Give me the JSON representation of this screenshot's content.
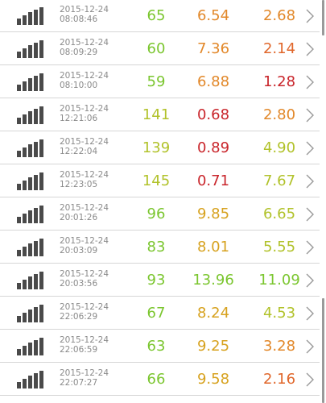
{
  "colors": {
    "green": "#7bc62f",
    "yellowgreen": "#b1c22a",
    "amber": "#d7a21f",
    "orange": "#e2882a",
    "red": "#c9252b"
  },
  "icons": {
    "signal": "signal-strength-icon",
    "chevron": "chevron-right-icon"
  },
  "rows": [
    {
      "date": "2015-12-24",
      "time": "08:08:46",
      "ping": "65",
      "download": "6.54",
      "upload": "2.68",
      "ping_color": "#7bc62f",
      "download_color": "#e2882a",
      "upload_color": "#e2882a"
    },
    {
      "date": "2015-12-24",
      "time": "08:09:29",
      "ping": "60",
      "download": "7.36",
      "upload": "2.14",
      "ping_color": "#7bc62f",
      "download_color": "#e2882a",
      "upload_color": "#e0662a"
    },
    {
      "date": "2015-12-24",
      "time": "08:10:00",
      "ping": "59",
      "download": "6.88",
      "upload": "1.28",
      "ping_color": "#7bc62f",
      "download_color": "#e2882a",
      "upload_color": "#c9252b"
    },
    {
      "date": "2015-12-24",
      "time": "12:21:06",
      "ping": "141",
      "download": "0.68",
      "upload": "2.80",
      "ping_color": "#b1c22a",
      "download_color": "#c9252b",
      "upload_color": "#e2882a"
    },
    {
      "date": "2015-12-24",
      "time": "12:22:04",
      "ping": "139",
      "download": "0.89",
      "upload": "4.90",
      "ping_color": "#b1c22a",
      "download_color": "#c9252b",
      "upload_color": "#b1c22a"
    },
    {
      "date": "2015-12-24",
      "time": "12:23:05",
      "ping": "145",
      "download": "0.71",
      "upload": "7.67",
      "ping_color": "#b1c22a",
      "download_color": "#c9252b",
      "upload_color": "#b1c22a"
    },
    {
      "date": "2015-12-24",
      "time": "20:01:26",
      "ping": "96",
      "download": "9.85",
      "upload": "6.65",
      "ping_color": "#7bc62f",
      "download_color": "#d7a21f",
      "upload_color": "#b1c22a"
    },
    {
      "date": "2015-12-24",
      "time": "20:03:09",
      "ping": "83",
      "download": "8.01",
      "upload": "5.55",
      "ping_color": "#7bc62f",
      "download_color": "#d7a21f",
      "upload_color": "#b1c22a"
    },
    {
      "date": "2015-12-24",
      "time": "20:03:56",
      "ping": "93",
      "download": "13.96",
      "upload": "11.09",
      "ping_color": "#7bc62f",
      "download_color": "#7bc62f",
      "upload_color": "#7bc62f"
    },
    {
      "date": "2015-12-24",
      "time": "22:06:29",
      "ping": "67",
      "download": "8.24",
      "upload": "4.53",
      "ping_color": "#7bc62f",
      "download_color": "#d7a21f",
      "upload_color": "#b1c22a"
    },
    {
      "date": "2015-12-24",
      "time": "22:06:59",
      "ping": "63",
      "download": "9.25",
      "upload": "3.28",
      "ping_color": "#7bc62f",
      "download_color": "#d7a21f",
      "upload_color": "#e2882a"
    },
    {
      "date": "2015-12-24",
      "time": "22:07:27",
      "ping": "66",
      "download": "9.58",
      "upload": "2.16",
      "ping_color": "#7bc62f",
      "download_color": "#d7a21f",
      "upload_color": "#e0662a"
    }
  ]
}
